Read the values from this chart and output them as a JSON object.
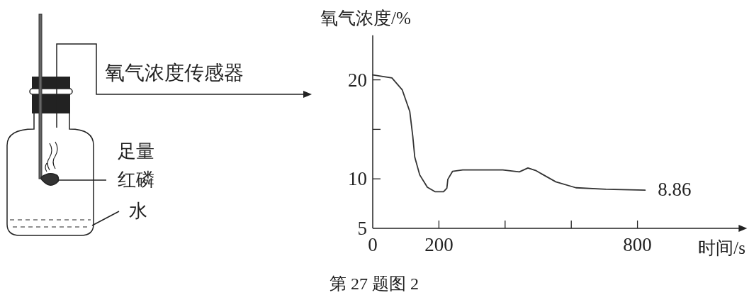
{
  "chart_data": {
    "type": "line",
    "ylabel": "氧气浓度/%",
    "xlabel": "时间/s",
    "x": [
      0,
      58,
      89,
      112,
      121,
      127,
      142,
      165,
      188,
      214,
      224,
      227,
      241,
      272,
      393,
      443,
      469,
      492,
      553,
      614,
      705,
      823
    ],
    "series": [
      {
        "color": "#333333",
        "values": [
          20.5,
          20.2,
          19.0,
          16.8,
          14.3,
          12.2,
          10.4,
          9.16,
          8.7,
          8.7,
          9.05,
          9.95,
          10.75,
          10.9,
          10.9,
          10.7,
          11.1,
          10.85,
          9.7,
          9.1,
          8.95,
          8.86
        ]
      }
    ],
    "xlim": [
      0,
      1110
    ],
    "ylim": [
      5,
      24.5
    ],
    "xticks": [
      0,
      200,
      {
        "value": 400,
        "label": null
      },
      {
        "value": 600,
        "label": null
      },
      800
    ],
    "yticks": [
      5,
      10,
      {
        "value": 15,
        "label": null
      },
      20
    ],
    "grid": false,
    "marker": "none",
    "line_style": "solid",
    "annotations": [
      "氧气浓度传感器",
      "足量",
      "红磷",
      "水",
      "第 27 题图 2",
      {
        "text": "8.86",
        "x": 823,
        "y": 8.86
      }
    ]
  }
}
